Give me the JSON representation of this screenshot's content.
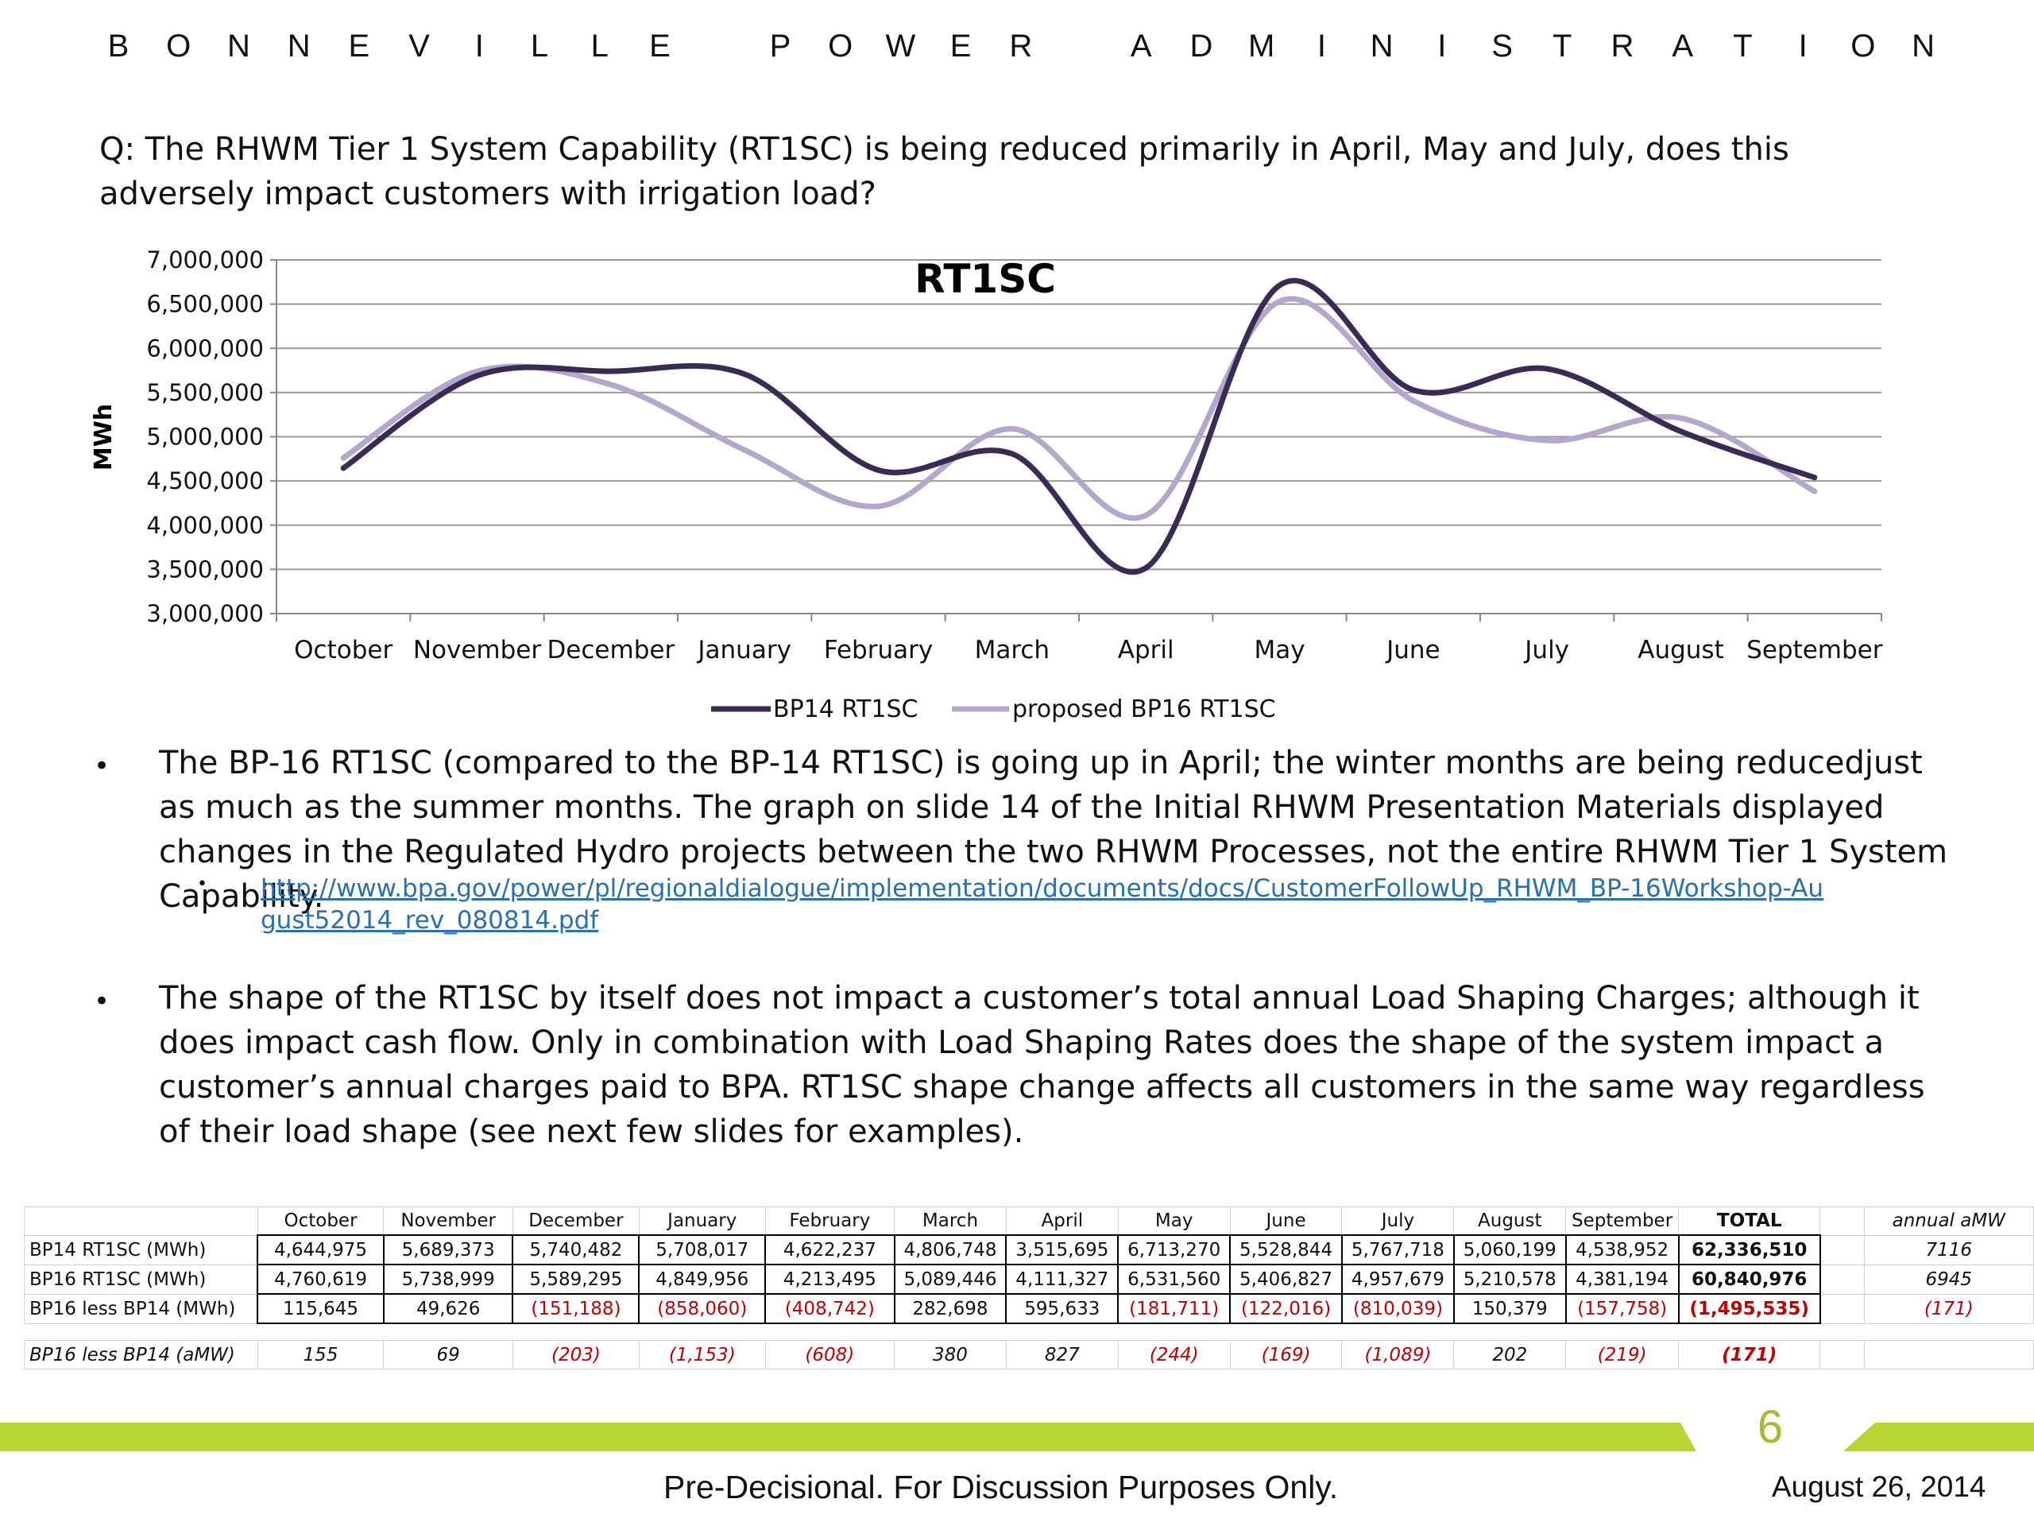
{
  "header": {
    "letters": [
      "B",
      "O",
      "N",
      "N",
      "E",
      "V",
      "I",
      "L",
      "L",
      "E",
      "",
      "P",
      "O",
      "W",
      "E",
      "R",
      "",
      "A",
      "D",
      "M",
      "I",
      "N",
      "I",
      "S",
      "T",
      "R",
      "A",
      "T",
      "I",
      "O",
      "N"
    ]
  },
  "question": "Q:  The RHWM Tier 1 System Capability (RT1SC) is being reduced primarily in April, May and July, does this adversely impact customers with irrigation load?",
  "colors": {
    "bp14": "#3b2a55",
    "bp16": "#b4a6cc",
    "accent_green": "#b7d433",
    "negative": "#c00000",
    "link": "#2a6fb0"
  },
  "chart_data": {
    "type": "line",
    "title": "RT1SC",
    "ylabel": "MWh",
    "xlabel": "",
    "categories": [
      "October",
      "November",
      "December",
      "January",
      "February",
      "March",
      "April",
      "May",
      "June",
      "July",
      "August",
      "September"
    ],
    "series": [
      {
        "name": "BP14 RT1SC",
        "values": [
          4644975,
          5689373,
          5740482,
          5708017,
          4622237,
          4806748,
          3515695,
          6713270,
          5528844,
          5767718,
          5060199,
          4538952
        ]
      },
      {
        "name": "proposed BP16 RT1SC",
        "values": [
          4760619,
          5738999,
          5589295,
          4849956,
          4213495,
          5089446,
          4111327,
          6531560,
          5406827,
          4957679,
          5210578,
          4381194
        ]
      }
    ],
    "ylim": [
      3000000,
      7000000
    ],
    "yticks": [
      "3,000,000",
      "3,500,000",
      "4,000,000",
      "4,500,000",
      "5,000,000",
      "5,500,000",
      "6,000,000",
      "6,500,000",
      "7,000,000"
    ],
    "ytick_values": [
      3000000,
      3500000,
      4000000,
      4500000,
      5000000,
      5500000,
      6000000,
      6500000,
      7000000
    ],
    "grid": true,
    "legend": "bottom"
  },
  "bullets": [
    "The BP-16 RT1SC (compared to the BP-14 RT1SC) is going up in April; the winter months are being reducedjust as much as the summer months.  The graph on slide 14 of the Initial RHWM Presentation Materials displayed changes in the Regulated Hydro projects between the two RHWM Processes, not the entire RHWM Tier 1 System Capability.",
    "The shape of the RT1SC by itself does not impact a customer’s total annual Load Shaping Charges; although it does impact cash flow.  Only in combination with Load Shaping Rates does the shape of the system impact a customer’s annual charges paid to BPA.  RT1SC shape change affects all customers in the same way regardless of their load shape (see next few slides for examples)."
  ],
  "link": "http://www.bpa.gov/power/pl/regionaldialogue/implementation/documents/docs/CustomerFollowUp_RHWM_BP-16Workshop-August52014_rev_080814.pdf",
  "table": {
    "headers": [
      "October",
      "November",
      "December",
      "January",
      "February",
      "March",
      "April",
      "May",
      "June",
      "July",
      "August",
      "September",
      "TOTAL"
    ],
    "annual_header": "annual aMW",
    "rows": [
      {
        "label": "BP14 RT1SC (MWh)",
        "values": [
          "4,644,975",
          "5,689,373",
          "5,740,482",
          "5,708,017",
          "4,622,237",
          "4,806,748",
          "3,515,695",
          "6,713,270",
          "5,528,844",
          "5,767,718",
          "5,060,199",
          "4,538,952",
          "62,336,510"
        ],
        "annual": "7116"
      },
      {
        "label": "BP16 RT1SC (MWh)",
        "values": [
          "4,760,619",
          "5,738,999",
          "5,589,295",
          "4,849,956",
          "4,213,495",
          "5,089,446",
          "4,111,327",
          "6,531,560",
          "5,406,827",
          "4,957,679",
          "5,210,578",
          "4,381,194",
          "60,840,976"
        ],
        "annual": "6945"
      },
      {
        "label": "BP16 less BP14 (MWh)",
        "values": [
          "115,645",
          "49,626",
          "(151,188)",
          "(858,060)",
          "(408,742)",
          "282,698",
          "595,633",
          "(181,711)",
          "(122,016)",
          "(810,039)",
          "150,379",
          "(157,758)",
          "(1,495,535)"
        ],
        "annual": "(171)"
      },
      {
        "label": "BP16 less BP14 (aMW)",
        "values": [
          "155",
          "69",
          "(203)",
          "(1,153)",
          "(608)",
          "380",
          "827",
          "(244)",
          "(169)",
          "(1,089)",
          "202",
          "(219)",
          "(171)"
        ],
        "annual": ""
      }
    ]
  },
  "footer": {
    "page_number": "6",
    "text": "Pre-Decisional.  For Discussion Purposes Only.",
    "date": "August 26, 2014"
  }
}
